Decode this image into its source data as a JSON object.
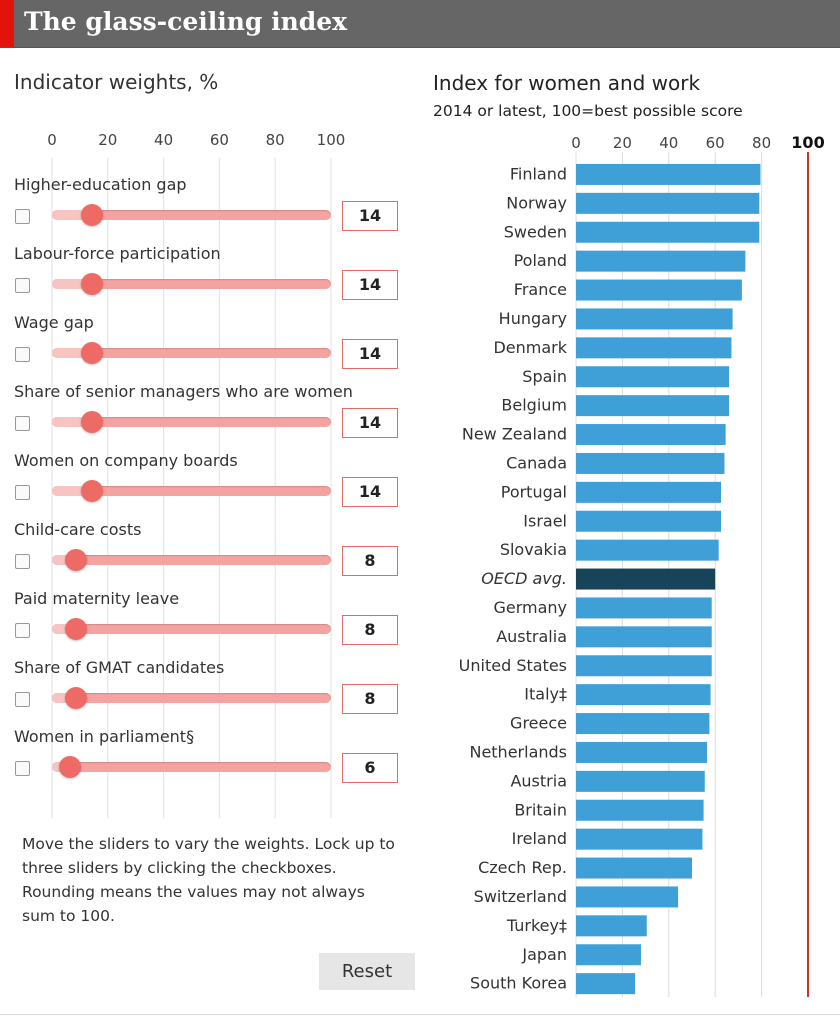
{
  "header": {
    "title": "The glass-ceiling index"
  },
  "weights_panel": {
    "title": "Indicator weights, %",
    "axis_ticks": [
      "0",
      "20",
      "40",
      "60",
      "80",
      "100"
    ],
    "sliders": [
      {
        "label": "Higher-education gap",
        "value": 14
      },
      {
        "label": "Labour-force participation",
        "value": 14
      },
      {
        "label": "Wage gap",
        "value": 14
      },
      {
        "label": "Share of senior managers who are women",
        "value": 14
      },
      {
        "label": "Women on company boards",
        "value": 14
      },
      {
        "label": "Child-care costs",
        "value": 8
      },
      {
        "label": "Paid maternity leave",
        "value": 8
      },
      {
        "label": "Share of GMAT candidates",
        "value": 8
      },
      {
        "label": "Women in parliament§",
        "value": 6
      }
    ],
    "note": "Move the sliders to vary the weights. Lock up to three sliders by clicking the checkboxes. Rounding means the values may not always sum to 100.",
    "reset_label": "Reset"
  },
  "chart_data": {
    "type": "bar",
    "orientation": "horizontal",
    "title": "Index for women and work",
    "subtitle": "2014 or latest, 100=best possible score",
    "xlim": [
      0,
      100
    ],
    "x_ticks": [
      "0",
      "20",
      "40",
      "60",
      "80",
      "100"
    ],
    "categories": [
      "Finland",
      "Norway",
      "Sweden",
      "Poland",
      "France",
      "Hungary",
      "Denmark",
      "Spain",
      "Belgium",
      "New Zealand",
      "Canada",
      "Portugal",
      "Israel",
      "Slovakia",
      "OECD avg.",
      "Germany",
      "Australia",
      "United States",
      "Italy‡",
      "Greece",
      "Netherlands",
      "Austria",
      "Britain",
      "Ireland",
      "Czech Rep.",
      "Switzerland",
      "Turkey‡",
      "Japan",
      "South Korea"
    ],
    "values": [
      79.5,
      79,
      79,
      73,
      71.5,
      67.5,
      67,
      66,
      66,
      64.5,
      64,
      62.5,
      62.5,
      61.5,
      60,
      58.5,
      58.5,
      58.5,
      58,
      57.5,
      56.5,
      55.5,
      55,
      54.5,
      50,
      44,
      30.5,
      28,
      25.5
    ],
    "highlight": "OECD avg.",
    "colors": {
      "bar": "#3fa0d8",
      "highlight": "#174459",
      "reference_line": "#c0392b",
      "slider": "#ee6a64"
    },
    "reference_line": {
      "value": 100,
      "label": "100"
    },
    "grid": true
  }
}
